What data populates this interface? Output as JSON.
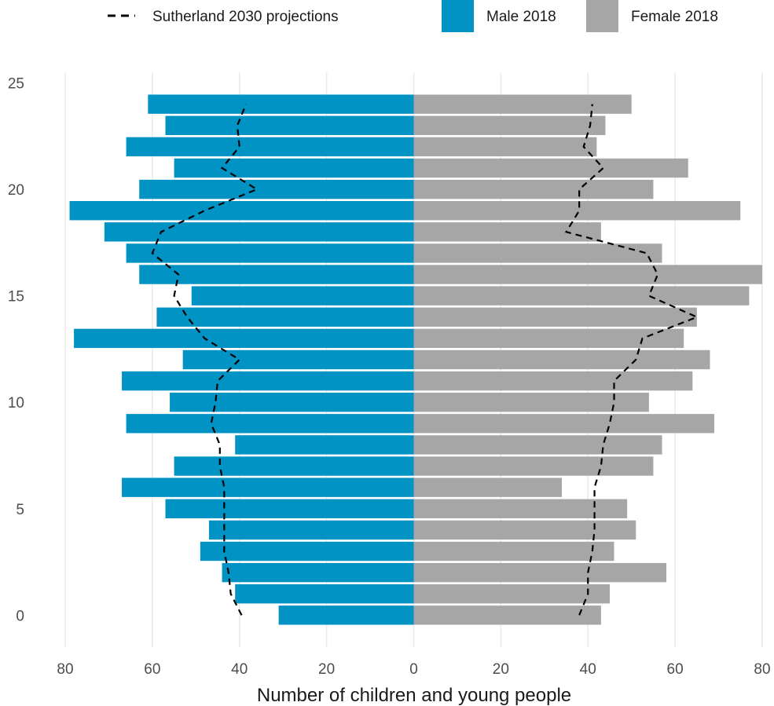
{
  "chart_data": {
    "type": "bar",
    "orientation": "horizontal",
    "layout": "population-pyramid",
    "xlabel": "Number of children and young people",
    "ylabel": "",
    "xlim": [
      -80,
      80
    ],
    "ylim": [
      -1.5,
      25.5
    ],
    "x_ticks": [
      -80,
      -60,
      -40,
      -20,
      0,
      20,
      40,
      60,
      80
    ],
    "x_tick_labels": [
      "80",
      "60",
      "40",
      "20",
      "0",
      "20",
      "40",
      "60",
      "80"
    ],
    "y_ticks": [
      0,
      5,
      10,
      15,
      20,
      25
    ],
    "y_tick_labels": [
      "0",
      "5",
      "10",
      "15",
      "20",
      "25"
    ],
    "grid": "vertical",
    "legend_position": "top",
    "categories": [
      0,
      1,
      2,
      3,
      4,
      5,
      6,
      7,
      8,
      9,
      10,
      11,
      12,
      13,
      14,
      15,
      16,
      17,
      18,
      19,
      20,
      21,
      22,
      23,
      24
    ],
    "series": [
      {
        "name": "Male 2018",
        "color": "#0093c4",
        "side": "left",
        "values": [
          31,
          41,
          44,
          49,
          47,
          57,
          67,
          55,
          41,
          66,
          56,
          67,
          53,
          78,
          59,
          51,
          63,
          66,
          71,
          79,
          63,
          55,
          66,
          57,
          61
        ]
      },
      {
        "name": "Female 2018",
        "color": "#a6a6a6",
        "side": "right",
        "values": [
          43,
          45,
          58,
          46,
          51,
          49,
          34,
          55,
          57,
          69,
          54,
          64,
          68,
          62,
          65,
          77,
          80,
          57,
          43,
          75,
          55,
          63,
          42,
          44,
          50
        ]
      }
    ],
    "projections": {
      "name": "Sutherland 2030 projections",
      "style": "dashed",
      "color": "#000000",
      "male": [
        39.5,
        42,
        42.5,
        43.5,
        43.5,
        43.5,
        43.5,
        44.5,
        44.5,
        46.5,
        45.5,
        45,
        40,
        48,
        52,
        55,
        54,
        60,
        58,
        48,
        36,
        44,
        40,
        40.5,
        38.5
      ],
      "female": [
        38,
        40,
        40,
        41,
        41.5,
        41.5,
        41.5,
        43,
        43.5,
        45,
        46,
        46,
        51,
        52.5,
        65,
        54,
        56,
        53.5,
        35,
        38,
        38,
        43.5,
        39,
        40.5,
        41
      ]
    }
  }
}
